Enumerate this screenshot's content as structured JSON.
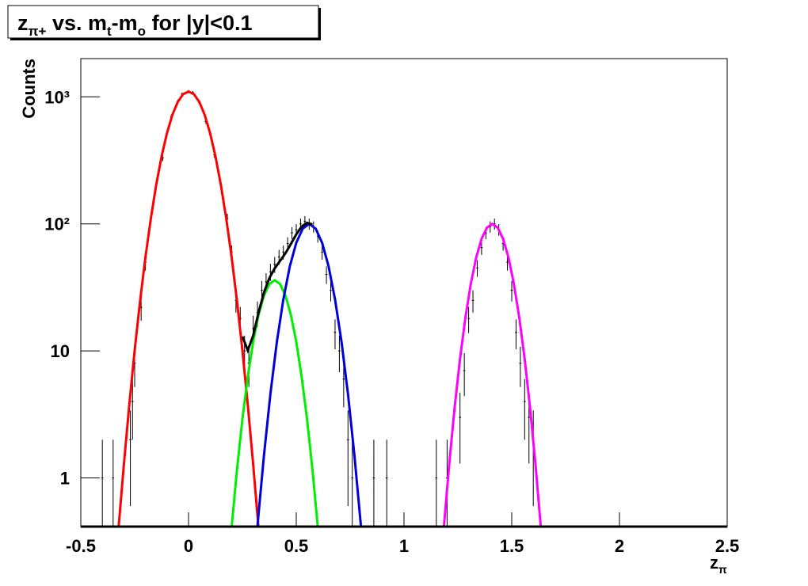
{
  "chart_data": {
    "type": "line",
    "title": [
      "z",
      "π+",
      " vs. m",
      "t",
      "-m",
      "o",
      " for |y|<0.1"
    ],
    "xlabel": [
      "z",
      "π"
    ],
    "ylabel": "Counts",
    "xlim": [
      -0.5,
      2.5
    ],
    "ylim": [
      0.414,
      2000
    ],
    "log_y": true,
    "xticks": [
      -0.5,
      0,
      0.5,
      1,
      1.5,
      2,
      2.5
    ],
    "yticks": [
      1,
      10,
      {
        "value": 100,
        "label": "10²"
      },
      {
        "value": 1000,
        "label": "10³"
      }
    ],
    "series": [
      {
        "type": "errorbar",
        "color": "#000000",
        "x": [
          -0.4,
          -0.35,
          -0.27,
          -0.26,
          -0.25,
          -0.22,
          -0.2,
          -0.18,
          -0.15,
          -0.12,
          -0.1,
          -0.08,
          -0.05,
          -0.03,
          0,
          0.02,
          0.05,
          0.08,
          0.1,
          0.12,
          0.15,
          0.18,
          0.2,
          0.22,
          0.24,
          0.26,
          0.28,
          0.3,
          0.32,
          0.34,
          0.36,
          0.38,
          0.4,
          0.42,
          0.44,
          0.46,
          0.48,
          0.5,
          0.52,
          0.54,
          0.56,
          0.58,
          0.6,
          0.62,
          0.64,
          0.66,
          0.68,
          0.7,
          0.72,
          0.74,
          0.76,
          0.86,
          0.92,
          1.15,
          1.2,
          1.26,
          1.28,
          1.3,
          1.32,
          1.34,
          1.36,
          1.38,
          1.4,
          1.42,
          1.44,
          1.46,
          1.48,
          1.5,
          1.52,
          1.54,
          1.56,
          1.58,
          1.6
        ],
        "values": [
          1,
          1,
          2,
          4,
          8,
          22,
          50,
          95,
          200,
          330,
          520,
          700,
          920,
          1050,
          1100,
          1080,
          900,
          640,
          510,
          350,
          200,
          110,
          60,
          25,
          18,
          10,
          8,
          15,
          20,
          30,
          35,
          42,
          48,
          55,
          60,
          70,
          85,
          90,
          100,
          105,
          100,
          95,
          80,
          60,
          40,
          30,
          14,
          10,
          6,
          2,
          1,
          1,
          1,
          1,
          1,
          3,
          7,
          18,
          25,
          45,
          65,
          85,
          95,
          100,
          90,
          70,
          50,
          30,
          14,
          8,
          4,
          3,
          2
        ],
        "errors": [
          1,
          1,
          1.4,
          2,
          2.8,
          4.7,
          7.1,
          9.7,
          14.1,
          18.2,
          22.8,
          26.5,
          30.3,
          32.4,
          33.2,
          32.9,
          30,
          25.3,
          22.6,
          18.7,
          14.1,
          10.5,
          7.7,
          5,
          4.2,
          3.2,
          2.8,
          3.9,
          4.5,
          5.5,
          5.9,
          6.5,
          6.9,
          7.4,
          7.7,
          8.4,
          9.2,
          9.5,
          10,
          10.2,
          10,
          9.7,
          8.9,
          7.7,
          6.3,
          5.5,
          3.7,
          3.2,
          2.4,
          1.4,
          1,
          1,
          1,
          1,
          1,
          1.7,
          2.6,
          4.2,
          5,
          6.7,
          8.1,
          9.2,
          9.7,
          10,
          9.5,
          8.4,
          7.1,
          5.5,
          3.7,
          2.8,
          2,
          1.7,
          1.4
        ]
      },
      {
        "type": "line",
        "color": "#ff0000",
        "x": [
          -0.325,
          -0.3,
          -0.275,
          -0.25,
          -0.225,
          -0.2,
          -0.175,
          -0.15,
          -0.125,
          -0.1,
          -0.075,
          -0.05,
          -0.025,
          0,
          0.025,
          0.05,
          0.075,
          0.1,
          0.125,
          0.15,
          0.175,
          0.2,
          0.225,
          0.25,
          0.275,
          0.3,
          0.325
        ],
        "values": [
          0.4,
          1.28,
          3.76,
          10.1,
          24.6,
          54.7,
          110,
          203,
          340,
          519,
          721,
          912,
          1050,
          1100,
          1050,
          912,
          721,
          519,
          340,
          203,
          110,
          54.7,
          24.6,
          10.1,
          3.76,
          1.28,
          0.4
        ]
      },
      {
        "type": "line",
        "color": "#00ee00",
        "x": [
          0.2,
          0.225,
          0.25,
          0.275,
          0.3,
          0.325,
          0.35,
          0.375,
          0.4,
          0.425,
          0.45,
          0.475,
          0.5,
          0.525,
          0.55,
          0.575,
          0.6
        ],
        "values": [
          0.41,
          1.17,
          2.9,
          6.27,
          11.8,
          19.2,
          27.2,
          33.6,
          36,
          33.6,
          27.2,
          19.2,
          11.8,
          6.27,
          2.9,
          1.17,
          0.41
        ]
      },
      {
        "type": "line",
        "color": "#0000dd",
        "x": [
          0.32,
          0.35,
          0.38,
          0.41,
          0.44,
          0.47,
          0.5,
          0.53,
          0.56,
          0.59,
          0.62,
          0.65,
          0.68,
          0.71,
          0.74,
          0.77,
          0.8
        ],
        "values": [
          0.42,
          1.5,
          4.59,
          11.8,
          25.4,
          46.3,
          71,
          91.8,
          100,
          91.8,
          71,
          46.3,
          25.4,
          11.8,
          4.59,
          1.5,
          0.42
        ]
      },
      {
        "type": "line",
        "color": "#ff00ff",
        "x": [
          1.185,
          1.21,
          1.235,
          1.26,
          1.285,
          1.31,
          1.335,
          1.36,
          1.385,
          1.41,
          1.435,
          1.46,
          1.485,
          1.51,
          1.535,
          1.56,
          1.585,
          1.61,
          1.635
        ],
        "values": [
          0.41,
          1.29,
          3.58,
          8.66,
          18.3,
          33.7,
          54.3,
          76.2,
          93.4,
          100,
          93.4,
          76.2,
          54.3,
          33.7,
          18.3,
          8.66,
          3.58,
          1.29,
          0.41
        ]
      },
      {
        "type": "line",
        "color": "#000000",
        "x": [
          0.25,
          0.275,
          0.3,
          0.325,
          0.35,
          0.375,
          0.4,
          0.425,
          0.45,
          0.475,
          0.5,
          0.525,
          0.55,
          0.575
        ],
        "values": [
          13,
          10.1,
          13.2,
          20.1,
          28.8,
          37.4,
          44.7,
          51.2,
          58.8,
          69.5,
          82.8,
          95.3,
          101.9,
          99.1
        ]
      }
    ]
  }
}
